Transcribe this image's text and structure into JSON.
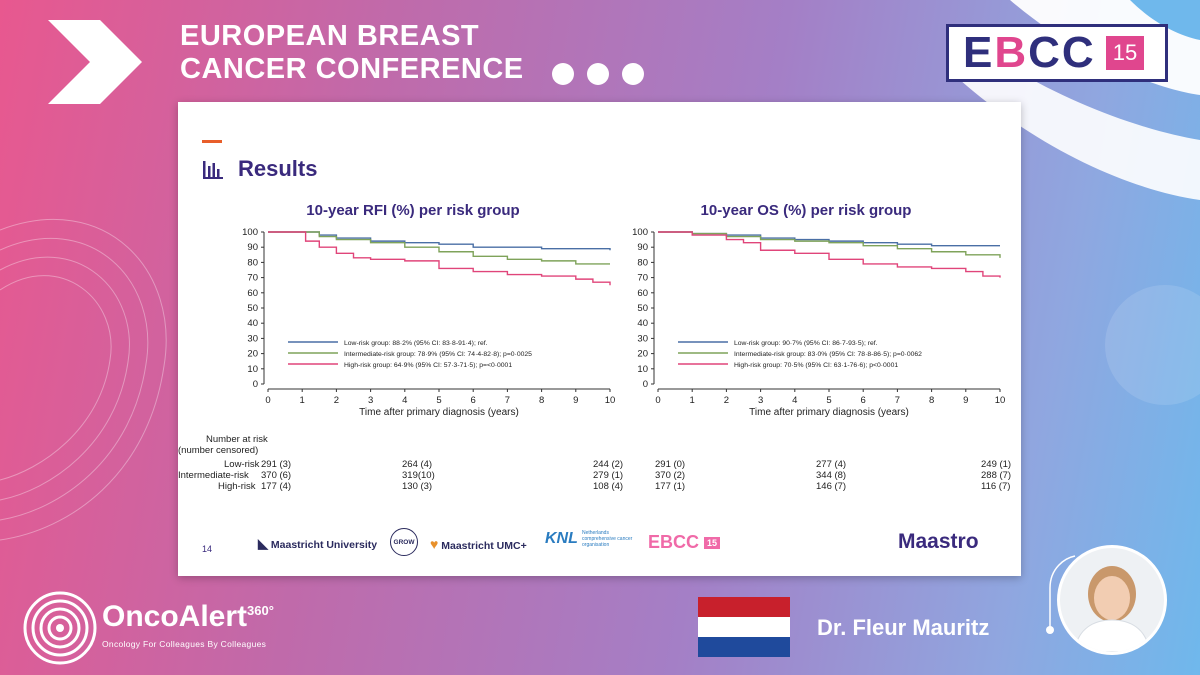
{
  "conference": {
    "title_line1": "EUROPEAN BREAST",
    "title_line2": "CANCER CONFERENCE"
  },
  "ebcc_logo": {
    "text_e": "E",
    "text_b": "B",
    "text_cc": "CC",
    "number": "15"
  },
  "slide": {
    "title": "Results",
    "page_number": "14",
    "number_at_risk_title": "Number at risk",
    "number_censored": "(number censored)",
    "groups": [
      "Low-risk",
      "Intermediate-risk",
      "High-risk"
    ]
  },
  "partners": {
    "maastricht_university": "Maastricht University",
    "grow": "GROW",
    "maastricht_umc": "Maastricht UMC+",
    "knl": "KNL",
    "knl_sub": "Netherlands comprehensive cancer organisation",
    "ebcc": "EBCC",
    "ebcc_number": "15",
    "maastro": "Maastro"
  },
  "footer": {
    "brand": "OncoAlert",
    "brand_sup": "360°",
    "tagline": "Oncology    For Colleagues    By Colleagues",
    "speaker": "Dr. Fleur Mauritz"
  },
  "colors": {
    "low": "#4a6fa5",
    "intermediate": "#7fa35a",
    "high": "#e0457a",
    "title": "#3a2a7d"
  },
  "chart_data": [
    {
      "type": "line",
      "title": "10-year RFI (%) per risk group",
      "xlabel": "Time after primary diagnosis (years)",
      "ylabel": "",
      "xlim": [
        0,
        10
      ],
      "ylim": [
        0,
        100
      ],
      "xticks": [
        0,
        1,
        2,
        3,
        4,
        5,
        6,
        7,
        8,
        9,
        10
      ],
      "yticks": [
        0,
        10,
        20,
        30,
        40,
        50,
        60,
        70,
        80,
        90,
        100
      ],
      "series": [
        {
          "name": "Low-risk group: 88·2% (95% CI: 83·8-91·4); ref.",
          "color": "#4a6fa5",
          "x": [
            0,
            0.8,
            1.5,
            2,
            3,
            4,
            5,
            6,
            7,
            8,
            9,
            10
          ],
          "y": [
            100,
            100,
            98,
            96,
            94,
            93,
            92,
            90,
            90,
            89,
            89,
            88
          ]
        },
        {
          "name": "Intermediate-risk group: 78·9% (95% CI: 74·4-82·8); p=0·0025",
          "color": "#7fa35a",
          "x": [
            0,
            0.8,
            1.5,
            2,
            3,
            4,
            5,
            6,
            7,
            8,
            9,
            10
          ],
          "y": [
            100,
            100,
            97,
            95,
            93,
            90,
            87,
            84,
            82,
            81,
            79,
            79
          ]
        },
        {
          "name": "High-risk group: 64·9% (95% CI: 57·3-71·5); p=<0·0001",
          "color": "#e0457a",
          "x": [
            0,
            0.8,
            1.1,
            1.5,
            2,
            2.5,
            3,
            4,
            5,
            6,
            7,
            8,
            9,
            9.5,
            10
          ],
          "y": [
            100,
            100,
            94,
            90,
            86,
            83,
            82,
            81,
            76,
            74,
            72,
            71,
            69,
            67,
            65
          ]
        }
      ],
      "number_at_risk": {
        "low": [
          "291 (3)",
          "264 (4)",
          "244 (2)"
        ],
        "intermediate": [
          "370 (6)",
          "319(10)",
          "279 (1)"
        ],
        "high": [
          "177 (4)",
          "130 (3)",
          "108 (4)"
        ]
      }
    },
    {
      "type": "line",
      "title": "10-year OS (%) per risk group",
      "xlabel": "Time after primary diagnosis (years)",
      "ylabel": "",
      "xlim": [
        0,
        10
      ],
      "ylim": [
        0,
        100
      ],
      "xticks": [
        0,
        1,
        2,
        3,
        4,
        5,
        6,
        7,
        8,
        9,
        10
      ],
      "yticks": [
        0,
        10,
        20,
        30,
        40,
        50,
        60,
        70,
        80,
        90,
        100
      ],
      "series": [
        {
          "name": "Low-risk group: 90·7% (95% CI: 86·7-93·5); ref.",
          "color": "#4a6fa5",
          "x": [
            0,
            1,
            2,
            3,
            4,
            5,
            6,
            7,
            8,
            9,
            10
          ],
          "y": [
            100,
            99,
            98,
            96,
            95,
            94,
            93,
            92,
            91,
            91,
            91
          ]
        },
        {
          "name": "Intermediate-risk group: 83·0% (95% CI: 78·8-86·5); p=0·0062",
          "color": "#7fa35a",
          "x": [
            0,
            1,
            2,
            3,
            4,
            5,
            6,
            7,
            8,
            9,
            10
          ],
          "y": [
            100,
            99,
            97,
            95,
            94,
            93,
            91,
            89,
            87,
            85,
            83
          ]
        },
        {
          "name": "High-risk group: 70·5% (95% CI: 63·1-76·6); p<0·0001",
          "color": "#e0457a",
          "x": [
            0,
            1,
            2,
            2.5,
            3,
            4,
            5,
            6,
            7,
            8,
            9,
            9.5,
            10
          ],
          "y": [
            100,
            98,
            95,
            93,
            88,
            86,
            82,
            79,
            77,
            76,
            74,
            71,
            70
          ]
        }
      ],
      "number_at_risk": {
        "low": [
          "291 (0)",
          "277 (4)",
          "249 (1)"
        ],
        "intermediate": [
          "370 (2)",
          "344 (8)",
          "288 (7)"
        ],
        "high": [
          "177 (1)",
          "146 (7)",
          "116 (7)"
        ]
      }
    }
  ]
}
